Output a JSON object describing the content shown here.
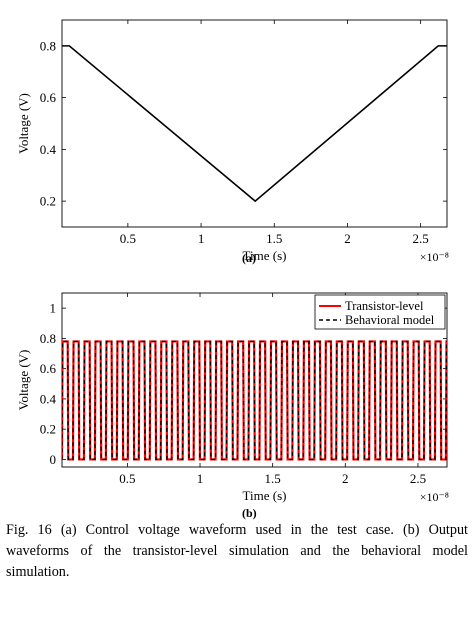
{
  "chart_data": [
    {
      "id": "a",
      "type": "line",
      "panel_label": "(a)",
      "xlabel": "Time (s)",
      "ylabel": "Voltage (V)",
      "x_multiplier": "×10⁻⁸",
      "xlim": [
        0.05,
        2.68
      ],
      "ylim": [
        0.1,
        0.9
      ],
      "xticks": [
        0.5,
        1,
        1.5,
        2,
        2.5
      ],
      "xtick_labels": [
        "0.5",
        "1",
        "1.5",
        "2",
        "2.5"
      ],
      "yticks": [
        0.2,
        0.4,
        0.6,
        0.8
      ],
      "ytick_labels": [
        "0.2",
        "0.4",
        "0.6",
        "0.8"
      ],
      "grid": false,
      "series": [
        {
          "color": "#000000",
          "style": "solid",
          "x": [
            0.05,
            0.1,
            1.37,
            2.62,
            2.68
          ],
          "y": [
            0.8,
            0.8,
            0.2,
            0.8,
            0.8
          ]
        }
      ]
    },
    {
      "id": "b",
      "type": "line",
      "panel_label": "(b)",
      "xlabel": "Time (s)",
      "ylabel": "Voltage (V)",
      "x_multiplier": "×10⁻⁸",
      "xlim": [
        0.05,
        2.7
      ],
      "ylim": [
        -0.05,
        1.1
      ],
      "xticks": [
        0.5,
        1,
        1.5,
        2,
        2.5
      ],
      "xtick_labels": [
        "0.5",
        "1",
        "1.5",
        "2",
        "2.5"
      ],
      "yticks": [
        0,
        0.2,
        0.4,
        0.6,
        0.8,
        1
      ],
      "ytick_labels": [
        "0",
        "0.2",
        "0.4",
        "0.6",
        "0.8",
        "1"
      ],
      "grid": false,
      "legend_position": "top-right",
      "pulse": {
        "period_x": 0.0755,
        "start_x": 0.05,
        "duty": 0.52,
        "high": 0.78,
        "low": 0.0,
        "edge_x": 0.004
      },
      "series": [
        {
          "name": "Transistor-level",
          "color": "#ff0000",
          "style": "solid"
        },
        {
          "name": "Behavioral model",
          "color": "#000000",
          "style": "dashed"
        }
      ]
    }
  ],
  "caption": "Fig. 16  (a) Control voltage waveform used in the test case. (b) Output waveforms of the transistor-level simulation and the behavioral model simulation."
}
